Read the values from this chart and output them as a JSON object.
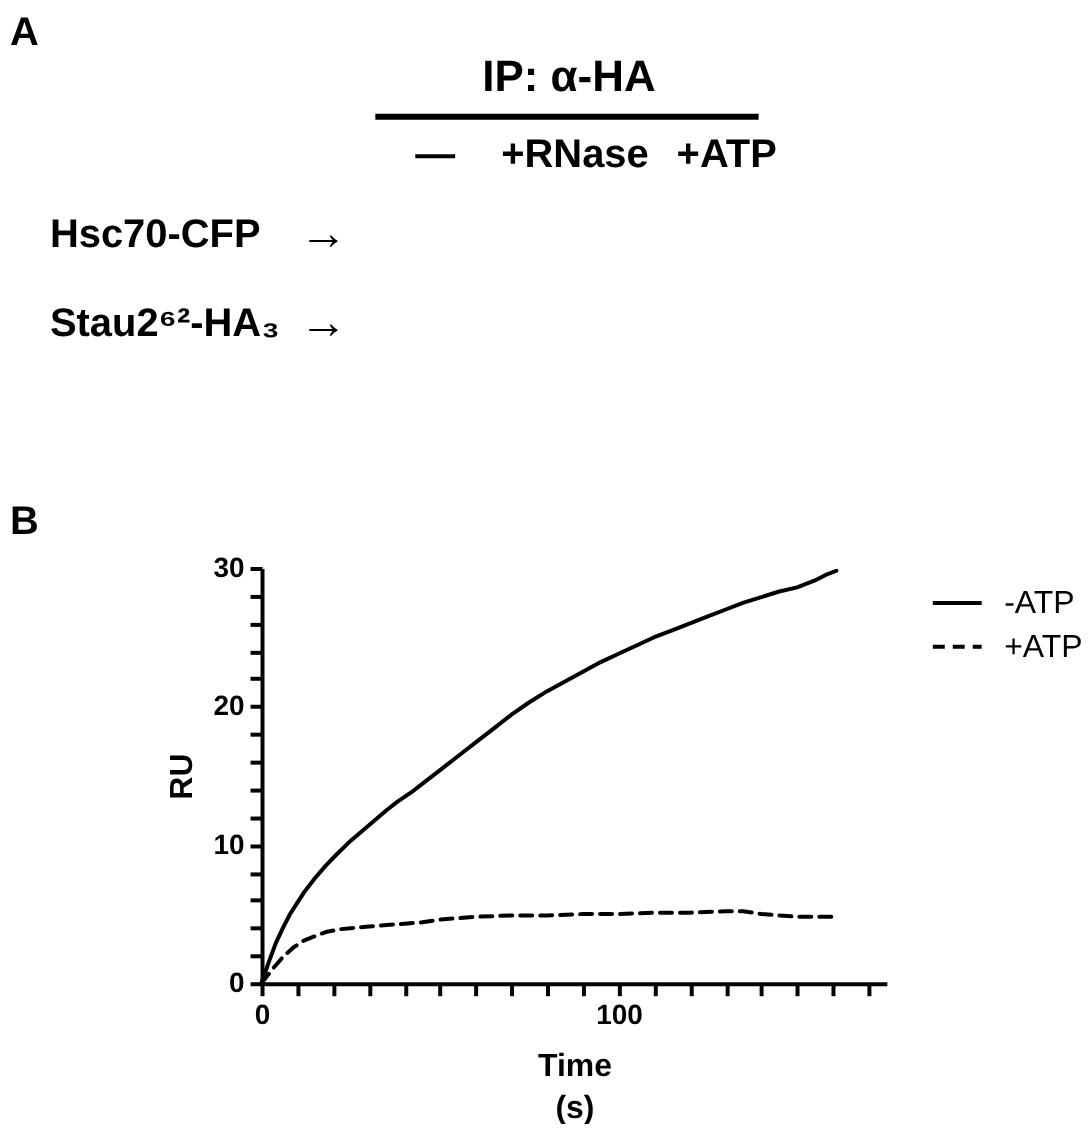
{
  "chart_data": [
    {
      "type": "other",
      "title": "A",
      "annotations": [
        "IP: α-HA",
        "—",
        "+RNase",
        "+ATP",
        "Hsc70-CFP",
        "→",
        "Stau2⁶²-HA₃",
        "→"
      ]
    },
    {
      "type": "line",
      "title": "B",
      "xlabel": "Time\n(s)",
      "ylabel": "RU",
      "xlim": [
        0,
        175
      ],
      "xticks": [
        0,
        {
          "value": 10,
          "label": null
        },
        {
          "value": 20,
          "label": null
        },
        {
          "value": 30,
          "label": null
        },
        {
          "value": 40,
          "label": null
        },
        {
          "value": 50,
          "label": null
        },
        {
          "value": 60,
          "label": null
        },
        {
          "value": 70,
          "label": null
        },
        {
          "value": 80,
          "label": null
        },
        {
          "value": 90,
          "label": null
        },
        100,
        {
          "value": 110,
          "label": null
        },
        {
          "value": 120,
          "label": null
        },
        {
          "value": 130,
          "label": null
        },
        {
          "value": 140,
          "label": null
        },
        {
          "value": 150,
          "label": null
        },
        {
          "value": 160,
          "label": null
        },
        {
          "value": 170,
          "label": null
        }
      ],
      "ylim": [
        0,
        30
      ],
      "yticks": [
        0,
        {
          "value": 2,
          "label": null
        },
        {
          "value": 4,
          "label": null
        },
        {
          "value": 6,
          "label": null
        },
        {
          "value": 8,
          "label": null
        },
        10,
        {
          "value": 12,
          "label": null
        },
        {
          "value": 14,
          "label": null
        },
        {
          "value": 16,
          "label": null
        },
        {
          "value": 18,
          "label": null
        },
        20,
        {
          "value": 22,
          "label": null
        },
        {
          "value": 24,
          "label": null
        },
        {
          "value": 26,
          "label": null
        },
        {
          "value": 28,
          "label": null
        },
        30
      ],
      "grid": false,
      "legend": "top right",
      "series": [
        {
          "name": "-ATP",
          "color": "#000000",
          "line_style": "solid",
          "x": [
            0,
            2,
            4,
            6,
            8,
            10,
            12,
            15,
            18,
            21,
            25,
            30,
            35,
            38,
            42,
            46,
            50,
            55,
            60,
            65,
            70,
            75,
            80,
            85,
            90,
            95,
            100,
            105,
            110,
            115,
            120,
            125,
            130,
            135,
            140,
            145,
            150,
            155,
            158,
            161
          ],
          "values": [
            0,
            1.5,
            2.9,
            4.0,
            5.0,
            5.8,
            6.6,
            7.6,
            8.5,
            9.3,
            10.3,
            11.4,
            12.5,
            13.1,
            13.8,
            14.6,
            15.4,
            16.4,
            17.4,
            18.4,
            19.4,
            20.3,
            21.1,
            21.8,
            22.5,
            23.2,
            23.8,
            24.4,
            25.0,
            25.5,
            26.0,
            26.5,
            27.0,
            27.5,
            27.9,
            28.3,
            28.6,
            29.1,
            29.5,
            29.8
          ]
        },
        {
          "name": "+ATP",
          "color": "#000000",
          "line_style": "dashed",
          "x": [
            0,
            3,
            6,
            9,
            12,
            15,
            18,
            22,
            26,
            30,
            35,
            40,
            45,
            50,
            55,
            60,
            70,
            80,
            90,
            95,
            100,
            110,
            120,
            130,
            135,
            140,
            145,
            150,
            155,
            161
          ],
          "values": [
            0,
            1.0,
            1.9,
            2.6,
            3.1,
            3.4,
            3.7,
            3.9,
            4.0,
            4.1,
            4.2,
            4.3,
            4.4,
            4.6,
            4.7,
            4.8,
            4.9,
            4.9,
            5.0,
            5.0,
            5.0,
            5.1,
            5.1,
            5.2,
            5.2,
            5.0,
            4.9,
            4.8,
            4.8,
            4.8
          ]
        }
      ]
    }
  ]
}
